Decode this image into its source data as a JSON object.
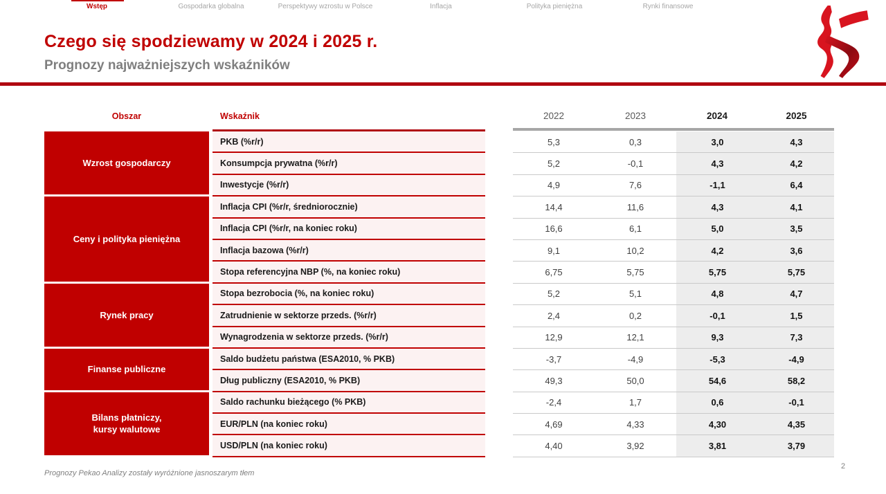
{
  "nav": {
    "items": [
      {
        "label": "Wstęp",
        "active": true
      },
      {
        "label": "Gospodarka globalna",
        "active": false
      },
      {
        "label": "Perspektywy wzrostu w Polsce",
        "active": false
      },
      {
        "label": "Inflacja",
        "active": false
      },
      {
        "label": "Polityka pieniężna",
        "active": false
      },
      {
        "label": "Rynki finansowe",
        "active": false
      }
    ]
  },
  "header": {
    "title": "Czego się spodziewamy w 2024 i 2025 r.",
    "subtitle": "Prognozy najważniejszych wskaźników"
  },
  "logo": {
    "name": "pekao-bison-logo"
  },
  "table": {
    "col_headers": {
      "area": "Obszar",
      "indicator": "Wskaźnik",
      "years": [
        "2022",
        "2023",
        "2024",
        "2025"
      ]
    },
    "forecast_years": [
      "2024",
      "2025"
    ],
    "groups": [
      {
        "area": "Wzrost gospodarczy",
        "rows": [
          {
            "indicator": "PKB (%r/r)",
            "values": [
              "5,3",
              "0,3",
              "3,0",
              "4,3"
            ]
          },
          {
            "indicator": "Konsumpcja prywatna (%r/r)",
            "values": [
              "5,2",
              "-0,1",
              "4,3",
              "4,2"
            ]
          },
          {
            "indicator": "Inwestycje (%r/r)",
            "values": [
              "4,9",
              "7,6",
              "-1,1",
              "6,4"
            ]
          }
        ]
      },
      {
        "area": "Ceny i polityka pieniężna",
        "rows": [
          {
            "indicator": "Inflacja CPI (%r/r, średniorocznie)",
            "values": [
              "14,4",
              "11,6",
              "4,3",
              "4,1"
            ]
          },
          {
            "indicator": "Inflacja CPI (%r/r, na koniec roku)",
            "values": [
              "16,6",
              "6,1",
              "5,0",
              "3,5"
            ]
          },
          {
            "indicator": "Inflacja bazowa (%r/r)",
            "values": [
              "9,1",
              "10,2",
              "4,2",
              "3,6"
            ]
          },
          {
            "indicator": "Stopa referencyjna NBP (%, na koniec roku)",
            "values": [
              "6,75",
              "5,75",
              "5,75",
              "5,75"
            ]
          }
        ]
      },
      {
        "area": "Rynek pracy",
        "rows": [
          {
            "indicator": "Stopa bezrobocia (%, na koniec roku)",
            "values": [
              "5,2",
              "5,1",
              "4,8",
              "4,7"
            ]
          },
          {
            "indicator": "Zatrudnienie w sektorze przeds. (%r/r)",
            "values": [
              "2,4",
              "0,2",
              "-0,1",
              "1,5"
            ]
          },
          {
            "indicator": "Wynagrodzenia w sektorze przeds. (%r/r)",
            "values": [
              "12,9",
              "12,1",
              "9,3",
              "7,3"
            ]
          }
        ]
      },
      {
        "area": "Finanse publiczne",
        "rows": [
          {
            "indicator": "Saldo budżetu państwa (ESA2010, % PKB)",
            "values": [
              "-3,7",
              "-4,9",
              "-5,3",
              "-4,9"
            ]
          },
          {
            "indicator": "Dług publiczny (ESA2010, % PKB)",
            "values": [
              "49,3",
              "50,0",
              "54,6",
              "58,2"
            ]
          }
        ]
      },
      {
        "area": "Bilans płatniczy,\nkursy walutowe",
        "rows": [
          {
            "indicator": "Saldo rachunku bieżącego (% PKB)",
            "values": [
              "-2,4",
              "1,7",
              "0,6",
              "-0,1"
            ]
          },
          {
            "indicator": "EUR/PLN (na koniec roku)",
            "values": [
              "4,69",
              "4,33",
              "4,30",
              "4,35"
            ]
          },
          {
            "indicator": "USD/PLN (na koniec roku)",
            "values": [
              "4,40",
              "3,92",
              "3,81",
              "3,79"
            ]
          }
        ]
      }
    ]
  },
  "footer": {
    "note": "Prognozy Pekao Analizy zostały wyróżnione jasnoszarym tłem",
    "page": "2"
  },
  "colors": {
    "accent": "#c00000",
    "rule_red": "#b00810",
    "area_block_bg": "#c00000",
    "indicator_bg": "#fcf2f2",
    "forecast_bg": "#ededed",
    "years_bar": "#a6a6a6",
    "inactive_nav": "#a6a6a6",
    "subtitle_gray": "#7f7f7f"
  }
}
